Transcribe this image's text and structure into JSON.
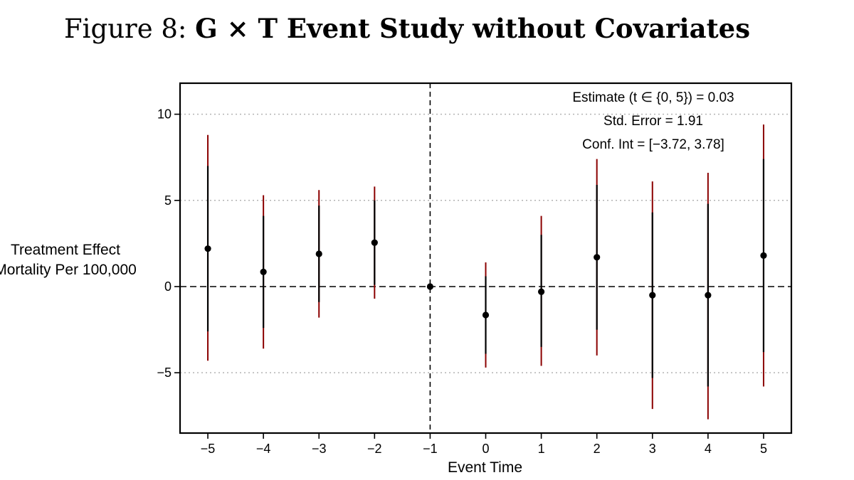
{
  "caption": {
    "prefix": "Figure 8: ",
    "title": "G × T Event Study without Covariates"
  },
  "chart_data": {
    "type": "scatter",
    "title": "G × T Event Study without Covariates",
    "xlabel": "Event Time",
    "ylabel_lines": [
      "Treatment Effect",
      "Mortality Per 100,000"
    ],
    "ylim": [
      -8.5,
      11.8
    ],
    "xlim": [
      -5.5,
      5.5
    ],
    "yticks": [
      10,
      5,
      0,
      -5
    ],
    "ytick_labels": [
      "10",
      "5",
      "0",
      "−5"
    ],
    "xticks": [
      -5,
      -4,
      -3,
      -2,
      -1,
      0,
      1,
      2,
      3,
      4,
      5
    ],
    "xtick_labels": [
      "−5",
      "−4",
      "−3",
      "−2",
      "−1",
      "0",
      "1",
      "2",
      "3",
      "4",
      "5"
    ],
    "grid": "dotted horizontal at major y ticks",
    "reference_lines": {
      "hline_y": 0,
      "vline_x": -1,
      "style": "dashed"
    },
    "colors": {
      "point": "#000000",
      "inner_ci": "#000000",
      "outer_ci": "#8b0000",
      "grid": "#b3b3b3"
    },
    "points": [
      {
        "x": -5,
        "y": 2.2,
        "ci_inner": [
          -2.6,
          7.0
        ],
        "ci_outer": [
          -4.3,
          8.8
        ]
      },
      {
        "x": -4,
        "y": 0.85,
        "ci_inner": [
          -2.4,
          4.1
        ],
        "ci_outer": [
          -3.6,
          5.3
        ]
      },
      {
        "x": -3,
        "y": 1.9,
        "ci_inner": [
          -0.9,
          4.7
        ],
        "ci_outer": [
          -1.8,
          5.6
        ]
      },
      {
        "x": -2,
        "y": 2.55,
        "ci_inner": [
          0.1,
          5.0
        ],
        "ci_outer": [
          -0.7,
          5.8
        ]
      },
      {
        "x": -1,
        "y": 0.0,
        "ci_inner": [
          0.0,
          0.0
        ],
        "ci_outer": [
          0.0,
          0.0
        ]
      },
      {
        "x": 0,
        "y": -1.65,
        "ci_inner": [
          -3.9,
          0.6
        ],
        "ci_outer": [
          -4.7,
          1.4
        ]
      },
      {
        "x": 1,
        "y": -0.3,
        "ci_inner": [
          -3.5,
          3.0
        ],
        "ci_outer": [
          -4.6,
          4.1
        ]
      },
      {
        "x": 2,
        "y": 1.7,
        "ci_inner": [
          -2.5,
          5.9
        ],
        "ci_outer": [
          -4.0,
          7.4
        ]
      },
      {
        "x": 3,
        "y": -0.5,
        "ci_inner": [
          -5.3,
          4.3
        ],
        "ci_outer": [
          -7.1,
          6.1
        ]
      },
      {
        "x": 4,
        "y": -0.5,
        "ci_inner": [
          -5.8,
          4.8
        ],
        "ci_outer": [
          -7.7,
          6.6
        ]
      },
      {
        "x": 5,
        "y": 1.8,
        "ci_inner": [
          -3.8,
          7.4
        ],
        "ci_outer": [
          -5.8,
          9.4
        ]
      }
    ],
    "annotations": [
      "Estimate (t ∈ {0, 5}) = 0.03",
      "Std. Error = 1.91",
      "Conf. Int = [−3.72, 3.78]"
    ]
  }
}
